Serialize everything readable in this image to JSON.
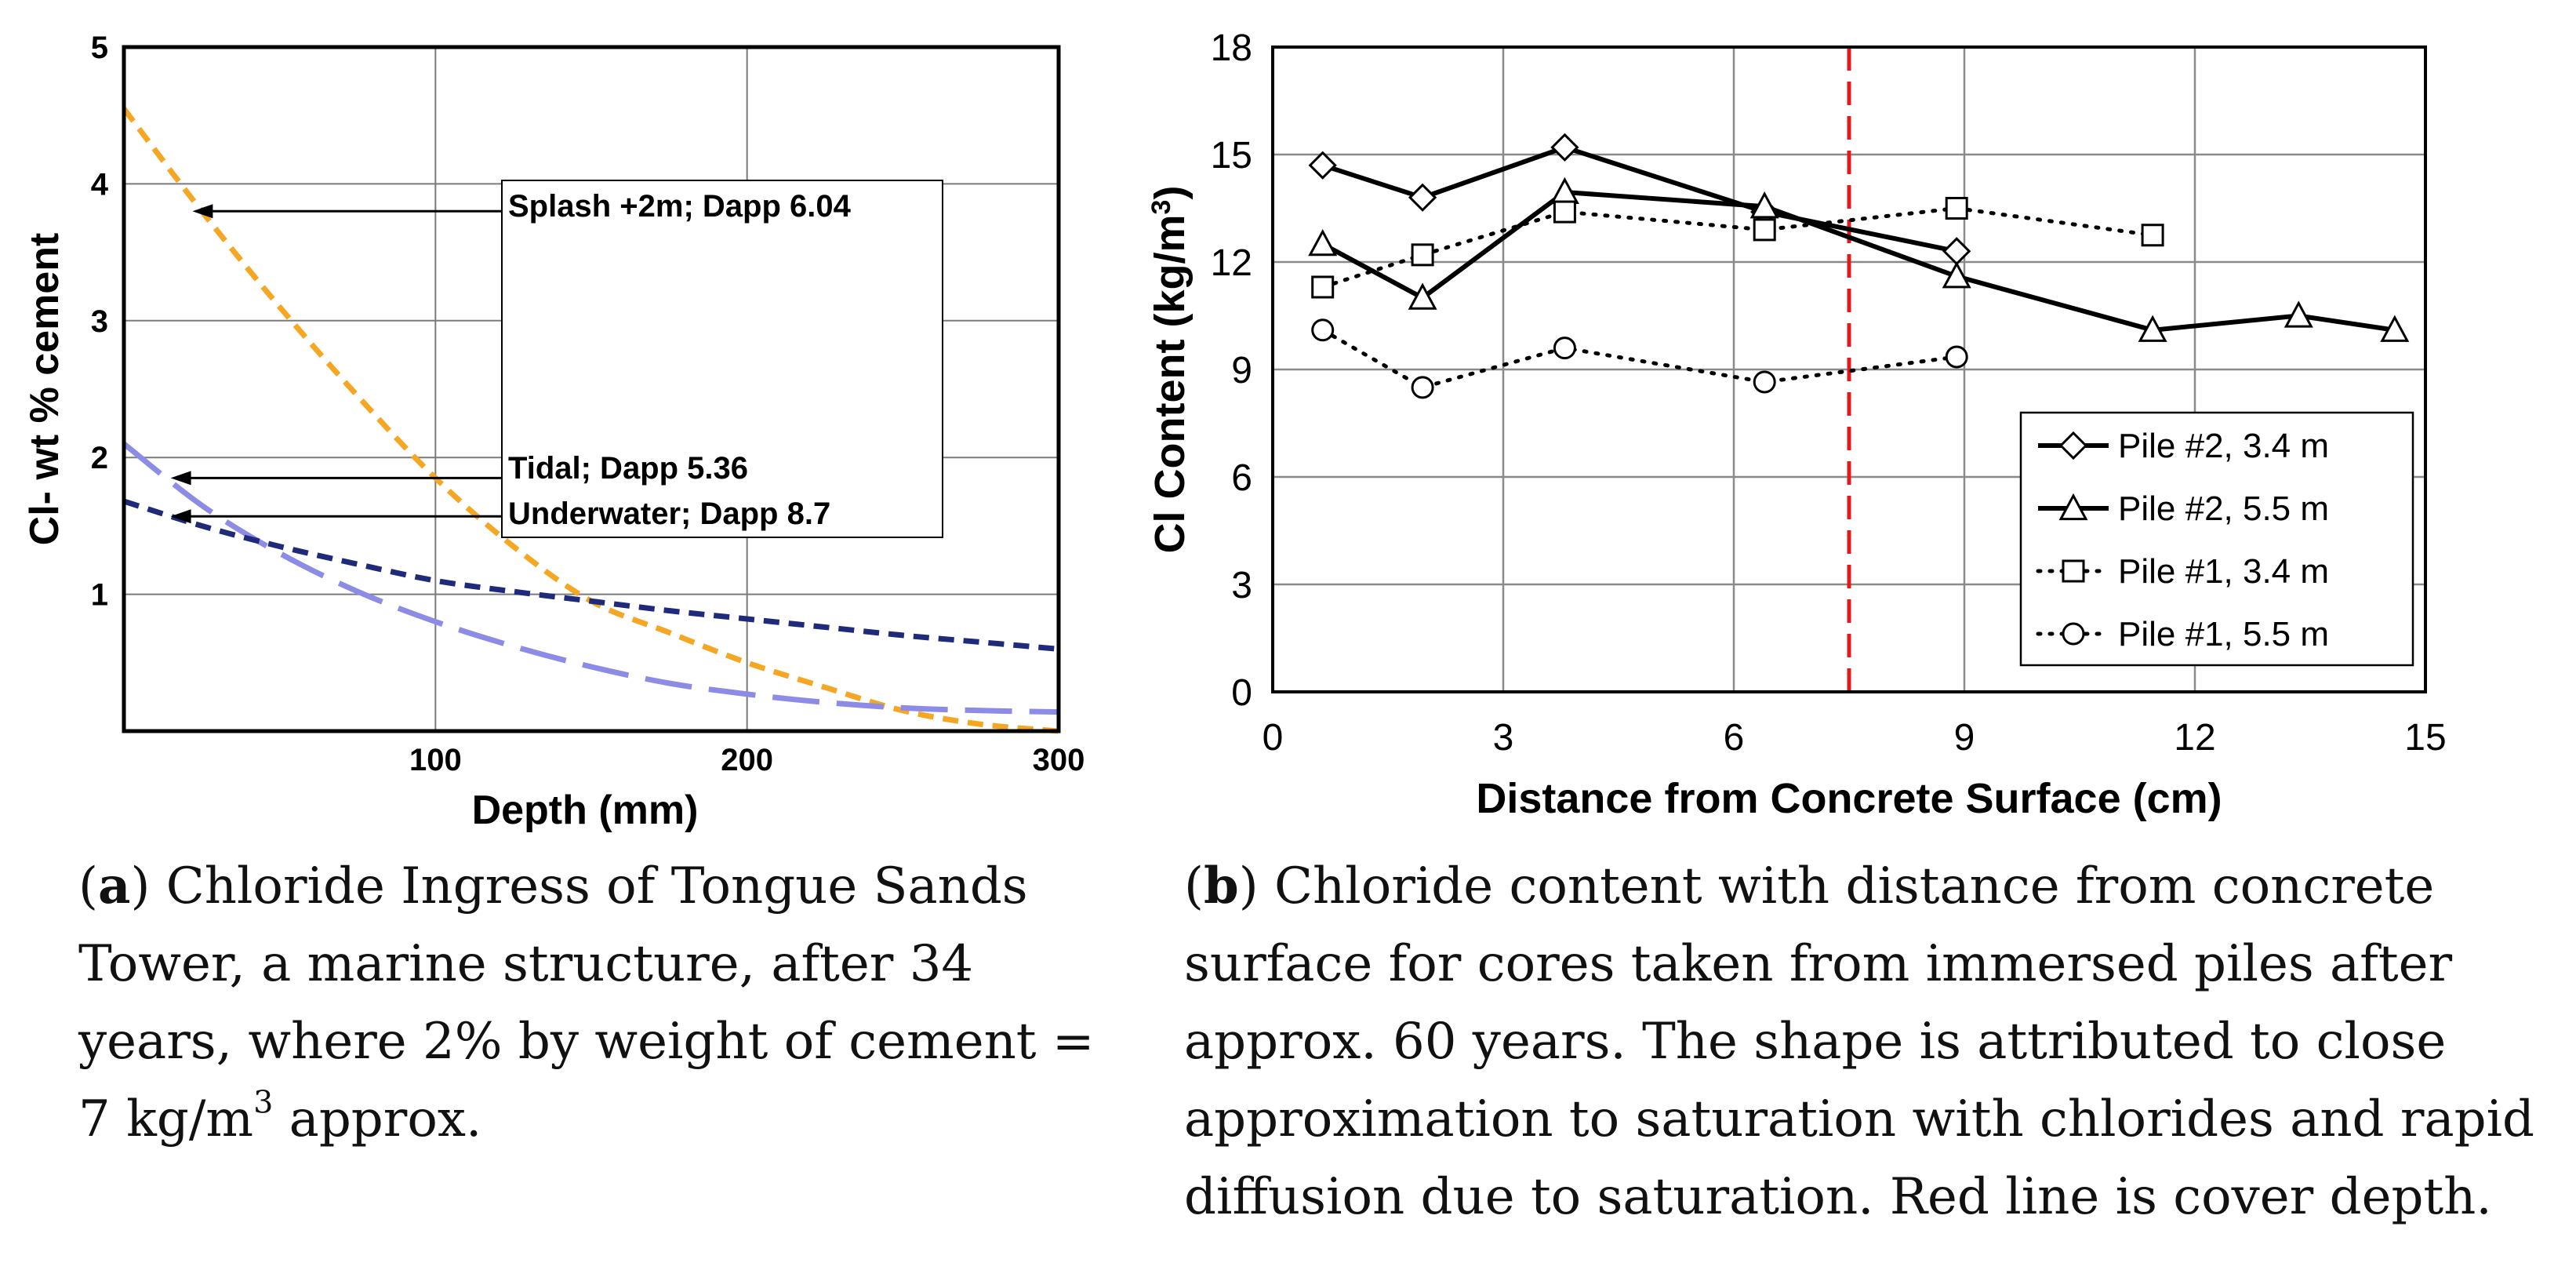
{
  "chart_data": [
    {
      "id": "a",
      "type": "line",
      "xlabel": "Depth (mm)",
      "ylabel": "Cl- wt % cement",
      "xlim": [
        0,
        300
      ],
      "ylim": [
        0,
        5
      ],
      "x_ticks": [
        100,
        200,
        300
      ],
      "y_ticks": [
        1,
        2,
        3,
        4,
        5
      ],
      "grid": true,
      "series": [
        {
          "name": "Splash +2m; Dapp 6.04",
          "color": "#f5a623",
          "dash": "short",
          "x": [
            0,
            25,
            50,
            75,
            100,
            125,
            150,
            175,
            200,
            225,
            250,
            275,
            300
          ],
          "y": [
            4.55,
            3.8,
            3.1,
            2.45,
            1.85,
            1.35,
            0.95,
            0.72,
            0.5,
            0.32,
            0.15,
            0.05,
            0.0
          ]
        },
        {
          "name": "Tidal; Dapp 5.36",
          "color": "#8c8ce6",
          "dash": "long",
          "x": [
            0,
            25,
            50,
            75,
            100,
            125,
            150,
            175,
            200,
            225,
            250,
            275,
            300
          ],
          "y": [
            2.1,
            1.65,
            1.3,
            1.02,
            0.8,
            0.62,
            0.47,
            0.35,
            0.27,
            0.21,
            0.17,
            0.15,
            0.14
          ]
        },
        {
          "name": "Underwater; Dapp 8.7",
          "color": "#1f2a7a",
          "dash": "short",
          "x": [
            0,
            25,
            50,
            75,
            100,
            125,
            150,
            175,
            200,
            225,
            250,
            275,
            300
          ],
          "y": [
            1.68,
            1.5,
            1.35,
            1.22,
            1.1,
            1.02,
            0.95,
            0.88,
            0.82,
            0.76,
            0.7,
            0.65,
            0.6
          ]
        }
      ],
      "annotations": [
        {
          "text": "Splash +2m; Dapp 6.04",
          "x": 22,
          "y": 3.8
        },
        {
          "text": "Tidal; Dapp 5.36",
          "x": 15,
          "y": 1.85
        },
        {
          "text": "Underwater; Dapp 8.7",
          "x": 15,
          "y": 1.57
        }
      ],
      "caption_label": "a",
      "caption": "Chloride Ingress of Tongue Sands Tower, a marine structure, after 34 years, where 2% by weight of cement = 7 kg/m",
      "caption_sup": "3",
      "caption_end": " approx."
    },
    {
      "id": "b",
      "type": "line",
      "xlabel": "Distance from Concrete Surface (cm)",
      "ylabel": "Cl Content",
      "ylabel_unit": "(kg/m",
      "ylabel_sup": "3",
      "ylabel_close": ")",
      "xlim": [
        0,
        15
      ],
      "ylim": [
        0,
        18
      ],
      "x_ticks": [
        0,
        3,
        6,
        9,
        12,
        15
      ],
      "y_ticks": [
        0,
        3,
        6,
        9,
        12,
        15,
        18
      ],
      "grid": true,
      "cover_depth_line": {
        "x": 7.5,
        "color": "#e31a1c"
      },
      "legend_position": "lower-right",
      "series": [
        {
          "name": "Pile #2, 3.4 m",
          "marker": "diamond",
          "style": "solid",
          "x": [
            0.65,
            1.95,
            3.8,
            6.4,
            8.9
          ],
          "y": [
            14.7,
            13.8,
            15.2,
            13.4,
            12.3
          ]
        },
        {
          "name": "Pile #2, 5.5 m",
          "marker": "triangle",
          "style": "solid",
          "x": [
            0.65,
            1.95,
            3.8,
            6.4,
            8.9,
            11.45,
            13.35,
            14.6
          ],
          "y": [
            12.5,
            11.0,
            13.95,
            13.55,
            11.6,
            10.1,
            10.5,
            10.1
          ]
        },
        {
          "name": "Pile #1, 3.4 m",
          "marker": "square",
          "style": "dotted",
          "x": [
            0.65,
            1.95,
            3.8,
            6.4,
            8.9,
            11.45
          ],
          "y": [
            11.3,
            12.2,
            13.4,
            12.9,
            13.5,
            12.75
          ]
        },
        {
          "name": "Pile #1, 5.5 m",
          "marker": "circle",
          "style": "dotted",
          "x": [
            0.65,
            1.95,
            3.8,
            6.4,
            8.9
          ],
          "y": [
            10.1,
            8.5,
            9.6,
            8.65,
            9.35
          ]
        }
      ],
      "caption_label": "b",
      "caption": "Chloride content with distance from concrete surface for cores taken from immersed piles after approx. 60 years. The shape is attributed to close approximation to saturation with chlorides and rapid diffusion due to saturation. Red line is cover depth."
    }
  ]
}
